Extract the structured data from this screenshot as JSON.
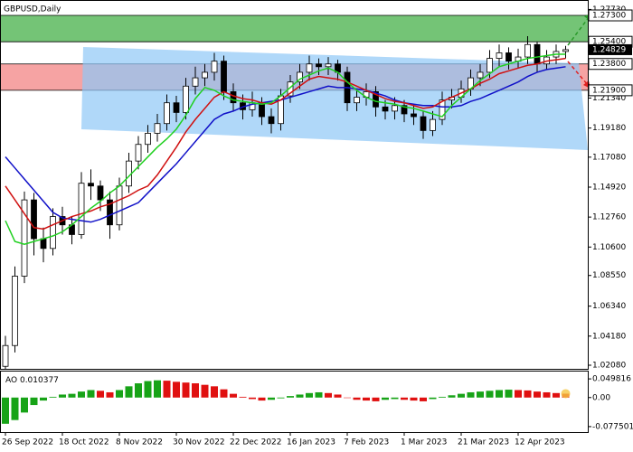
{
  "chart_data": {
    "type": "candlestick",
    "title": "GBPUSD,Daily",
    "ylim": [
      1.0182,
      1.2841
    ],
    "yticks": [
      {
        "value": 1.2773,
        "label": "1.27730"
      },
      {
        "value": 1.2134,
        "label": "1.21340"
      },
      {
        "value": 1.1918,
        "label": "1.19180"
      },
      {
        "value": 1.1708,
        "label": "1.17080"
      },
      {
        "value": 1.1492,
        "label": "1.14920"
      },
      {
        "value": 1.1276,
        "label": "1.12760"
      },
      {
        "value": 1.106,
        "label": "1.10600"
      },
      {
        "value": 1.0855,
        "label": "1.08550"
      },
      {
        "value": 1.0634,
        "label": "1.06340"
      },
      {
        "value": 1.0418,
        "label": "1.04180"
      },
      {
        "value": 1.0208,
        "label": "1.02080"
      }
    ],
    "zones": [
      {
        "top": {
          "value": 1.273,
          "label": "1.27300"
        },
        "bottom": {
          "value": 1.254,
          "label": "1.25400"
        },
        "color": "#74c476"
      },
      {
        "top": {
          "value": 1.238,
          "label": "1.23800"
        },
        "bottom": {
          "value": 1.219,
          "label": "1.21900"
        },
        "color": "#f6a3a3"
      }
    ],
    "last_price": {
      "value": 1.24829,
      "label": "1.24829"
    },
    "xticks": [
      {
        "value": 0,
        "label": "26 Sep 2022"
      },
      {
        "value": 6,
        "label": "18 Oct 2022"
      },
      {
        "value": 12,
        "label": "8 Nov 2022"
      },
      {
        "value": 18,
        "label": "30 Nov 2022"
      },
      {
        "value": 24,
        "label": "22 Dec 2022"
      },
      {
        "value": 30,
        "label": "16 Jan 2023"
      },
      {
        "value": 36,
        "label": "7 Feb 2023"
      },
      {
        "value": 42,
        "label": "1 Mar 2023"
      },
      {
        "value": 48,
        "label": "21 Mar 2023"
      },
      {
        "value": 54,
        "label": "12 Apr 2023"
      }
    ],
    "up_color": "#ffffff",
    "down_color": "#000000",
    "ohlc": [
      [
        1.02,
        1.042,
        1.018,
        1.035
      ],
      [
        1.035,
        1.092,
        1.03,
        1.085
      ],
      [
        1.085,
        1.146,
        1.08,
        1.14
      ],
      [
        1.14,
        1.145,
        1.1,
        1.112
      ],
      [
        1.112,
        1.12,
        1.095,
        1.105
      ],
      [
        1.105,
        1.134,
        1.1,
        1.128
      ],
      [
        1.128,
        1.135,
        1.115,
        1.122
      ],
      [
        1.122,
        1.128,
        1.108,
        1.115
      ],
      [
        1.115,
        1.16,
        1.112,
        1.152
      ],
      [
        1.152,
        1.162,
        1.14,
        1.15
      ],
      [
        1.15,
        1.154,
        1.132,
        1.14
      ],
      [
        1.14,
        1.146,
        1.112,
        1.122
      ],
      [
        1.122,
        1.156,
        1.118,
        1.15
      ],
      [
        1.15,
        1.174,
        1.145,
        1.168
      ],
      [
        1.168,
        1.186,
        1.162,
        1.18
      ],
      [
        1.18,
        1.194,
        1.174,
        1.188
      ],
      [
        1.188,
        1.202,
        1.182,
        1.195
      ],
      [
        1.195,
        1.216,
        1.19,
        1.21
      ],
      [
        1.21,
        1.215,
        1.196,
        1.203
      ],
      [
        1.203,
        1.228,
        1.198,
        1.222
      ],
      [
        1.222,
        1.236,
        1.216,
        1.228
      ],
      [
        1.228,
        1.238,
        1.222,
        1.232
      ],
      [
        1.232,
        1.246,
        1.226,
        1.24
      ],
      [
        1.24,
        1.244,
        1.212,
        1.218
      ],
      [
        1.218,
        1.224,
        1.204,
        1.21
      ],
      [
        1.21,
        1.216,
        1.198,
        1.205
      ],
      [
        1.205,
        1.218,
        1.2,
        1.21
      ],
      [
        1.21,
        1.214,
        1.194,
        1.2
      ],
      [
        1.2,
        1.206,
        1.188,
        1.195
      ],
      [
        1.195,
        1.22,
        1.19,
        1.215
      ],
      [
        1.215,
        1.23,
        1.21,
        1.225
      ],
      [
        1.225,
        1.238,
        1.22,
        1.232
      ],
      [
        1.232,
        1.244,
        1.226,
        1.238
      ],
      [
        1.238,
        1.242,
        1.23,
        1.236
      ],
      [
        1.236,
        1.243,
        1.23,
        1.238
      ],
      [
        1.238,
        1.241,
        1.226,
        1.232
      ],
      [
        1.232,
        1.236,
        1.204,
        1.21
      ],
      [
        1.21,
        1.22,
        1.204,
        1.214
      ],
      [
        1.214,
        1.224,
        1.208,
        1.218
      ],
      [
        1.218,
        1.222,
        1.2,
        1.207
      ],
      [
        1.207,
        1.212,
        1.198,
        1.204
      ],
      [
        1.204,
        1.214,
        1.198,
        1.208
      ],
      [
        1.208,
        1.212,
        1.196,
        1.202
      ],
      [
        1.202,
        1.208,
        1.194,
        1.2
      ],
      [
        1.2,
        1.204,
        1.184,
        1.19
      ],
      [
        1.19,
        1.204,
        1.186,
        1.198
      ],
      [
        1.198,
        1.218,
        1.194,
        1.212
      ],
      [
        1.212,
        1.22,
        1.206,
        1.214
      ],
      [
        1.214,
        1.226,
        1.21,
        1.22
      ],
      [
        1.22,
        1.234,
        1.215,
        1.228
      ],
      [
        1.228,
        1.238,
        1.222,
        1.232
      ],
      [
        1.232,
        1.248,
        1.228,
        1.242
      ],
      [
        1.242,
        1.252,
        1.236,
        1.246
      ],
      [
        1.246,
        1.25,
        1.234,
        1.24
      ],
      [
        1.24,
        1.249,
        1.235,
        1.243
      ],
      [
        1.243,
        1.258,
        1.238,
        1.252
      ],
      [
        1.252,
        1.254,
        1.232,
        1.238
      ],
      [
        1.238,
        1.248,
        1.234,
        1.243
      ],
      [
        1.243,
        1.252,
        1.238,
        1.247
      ],
      [
        1.247,
        1.251,
        1.242,
        1.2483
      ]
    ],
    "series": [
      {
        "color": "#1010c8",
        "values": [
          1.171,
          1.163,
          1.155,
          1.147,
          1.139,
          1.131,
          1.127,
          1.126,
          1.125,
          1.124,
          1.126,
          1.129,
          1.132,
          1.135,
          1.138,
          1.145,
          1.152,
          1.159,
          1.166,
          1.174,
          1.182,
          1.19,
          1.198,
          1.202,
          1.204,
          1.207,
          1.209,
          1.21,
          1.211,
          1.212,
          1.214,
          1.216,
          1.218,
          1.22,
          1.222,
          1.221,
          1.221,
          1.22,
          1.219,
          1.217,
          1.215,
          1.212,
          1.21,
          1.209,
          1.208,
          1.208,
          1.207,
          1.207,
          1.208,
          1.211,
          1.213,
          1.216,
          1.219,
          1.222,
          1.225,
          1.229,
          1.232,
          1.234,
          1.235,
          1.236
        ]
      },
      {
        "color": "#d01010",
        "values": [
          1.15,
          1.14,
          1.13,
          1.12,
          1.119,
          1.122,
          1.125,
          1.128,
          1.13,
          1.132,
          1.135,
          1.137,
          1.14,
          1.143,
          1.147,
          1.15,
          1.158,
          1.168,
          1.178,
          1.189,
          1.198,
          1.206,
          1.214,
          1.218,
          1.215,
          1.213,
          1.212,
          1.21,
          1.209,
          1.212,
          1.217,
          1.222,
          1.227,
          1.229,
          1.228,
          1.227,
          1.225,
          1.222,
          1.219,
          1.216,
          1.213,
          1.211,
          1.21,
          1.208,
          1.206,
          1.207,
          1.211,
          1.214,
          1.217,
          1.22,
          1.224,
          1.227,
          1.231,
          1.233,
          1.235,
          1.237,
          1.238,
          1.24,
          1.241,
          1.242
        ]
      },
      {
        "color": "#20d020",
        "values": [
          1.125,
          1.11,
          1.108,
          1.11,
          1.112,
          1.114,
          1.117,
          1.122,
          1.128,
          1.134,
          1.139,
          1.145,
          1.15,
          1.157,
          1.164,
          1.171,
          1.178,
          1.184,
          1.191,
          1.201,
          1.213,
          1.221,
          1.219,
          1.215,
          1.212,
          1.211,
          1.21,
          1.209,
          1.21,
          1.215,
          1.221,
          1.227,
          1.23,
          1.233,
          1.235,
          1.232,
          1.225,
          1.219,
          1.214,
          1.211,
          1.21,
          1.209,
          1.207,
          1.206,
          1.204,
          1.202,
          1.2,
          1.208,
          1.214,
          1.22,
          1.226,
          1.231,
          1.236,
          1.238,
          1.24,
          1.242,
          1.243,
          1.244,
          1.245,
          1.245
        ]
      }
    ],
    "ao": {
      "name": "AO",
      "ylim": [
        -0.0922,
        0.0694
      ],
      "yticks": [
        {
          "value": 0.049816,
          "label": "0.049816"
        },
        {
          "value": 0,
          "label": "0.00"
        },
        {
          "value": -0.077501,
          "label": "-0.077501"
        }
      ],
      "up_color": "#17a317",
      "down_color": "#e01010",
      "values": [
        -0.07,
        -0.06,
        -0.04,
        -0.02,
        -0.008,
        0.002,
        0.008,
        0.01,
        0.016,
        0.02,
        0.018,
        0.014,
        0.02,
        0.03,
        0.038,
        0.044,
        0.046,
        0.045,
        0.042,
        0.04,
        0.038,
        0.034,
        0.03,
        0.022,
        0.01,
        0.002,
        -0.004,
        -0.008,
        -0.006,
        -0.002,
        0.004,
        0.008,
        0.012,
        0.014,
        0.012,
        0.008,
        0.0,
        -0.006,
        -0.008,
        -0.01,
        -0.006,
        -0.004,
        -0.006,
        -0.008,
        -0.01,
        -0.004,
        0.002,
        0.006,
        0.01,
        0.014,
        0.016,
        0.018,
        0.02,
        0.021,
        0.02,
        0.019,
        0.016,
        0.014,
        0.012,
        0.010377
      ]
    }
  }
}
